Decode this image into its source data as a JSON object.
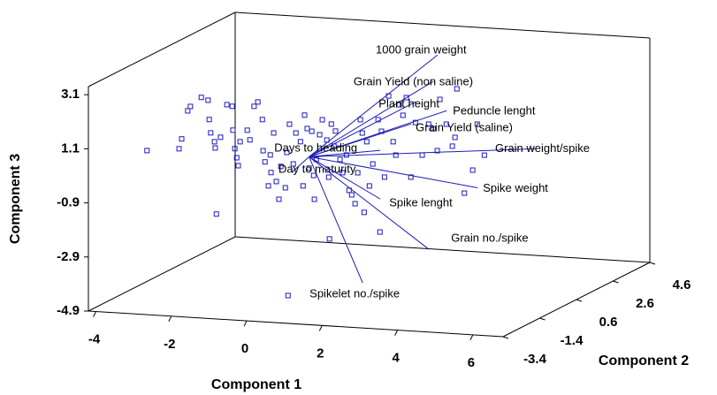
{
  "chart_data": {
    "type": "biplot3d",
    "x_label": "Component 1",
    "y_label": "Component 2",
    "z_label": "Component 3",
    "xlim": [
      -4.2,
      6.8
    ],
    "xticks": [
      -4,
      -2,
      0,
      2,
      4,
      6
    ],
    "ylim": [
      -3.4,
      4.6
    ],
    "yticks": [
      -3.4,
      -1.4,
      0.6,
      2.6,
      4.6
    ],
    "zlim": [
      -4.9,
      3.4
    ],
    "zticks": [
      -4.9,
      -2.9,
      -0.9,
      1.1,
      3.1
    ],
    "color": "#1c1cb8",
    "points": {
      "x": [
        -4.3,
        -3.45,
        -3.38,
        -3.22,
        -3.15,
        -2.86,
        -2.68,
        -2.65,
        -2.61,
        -2.51,
        -2.49,
        -2.35,
        -2.18,
        -2.04,
        -2.02,
        -1.97,
        -1.92,
        -1.88,
        -1.83,
        -1.64,
        -1.57,
        -1.46,
        -1.36,
        -1.24,
        -1.22,
        -1.17,
        -1.08,
        -1.03,
        -1.01,
        -0.94,
        -0.87,
        -0.8,
        -0.75,
        -0.63,
        -0.59,
        -0.52,
        -0.42,
        -0.35,
        -0.23,
        -0.16,
        -0.12,
        -0.05,
        0.07,
        0.14,
        0.19,
        0.28,
        0.35,
        0.47,
        0.52,
        0.59,
        0.54,
        0.66,
        0.7,
        0.82,
        0.89,
        0.99,
        1.06,
        1.13,
        1.22,
        1.29,
        1.36,
        1.41,
        1.46,
        1.53,
        1.6,
        1.69,
        1.83,
        1.88,
        1.92,
        2.0,
        2.11,
        2.23,
        2.3,
        2.39,
        2.49,
        2.58,
        2.7,
        2.82,
        3.0,
        3.17,
        3.29,
        3.4,
        3.47,
        3.64,
        3.8,
        3.87,
        3.92,
        4.12,
        4.34,
        4.46,
        4.65,
        -2.46,
        -0.56,
        0.0,
        0.12
      ],
      "z": [
        -0.14,
        0.0,
        0.37,
        1.42,
        1.59,
        1.95,
        1.86,
        1.15,
        0.66,
        0.34,
        0.11,
        0.52,
        1.74,
        1.69,
        0.81,
        0.13,
        -0.2,
        -0.49,
        0.4,
        0.84,
        0.49,
        1.74,
        1.91,
        1.27,
        0.12,
        -0.29,
        -1.17,
        -0.02,
        -0.67,
        0.8,
        -0.99,
        -1.64,
        -0.42,
        -1.2,
        0.11,
        1.16,
        -0.3,
        0.85,
        0.54,
        -1.09,
        1.53,
        1.04,
        0.95,
        -1.56,
        -0.08,
        0.84,
        1.4,
        0.66,
        -0.71,
        1.26,
        -2.99,
        0.45,
        1.01,
        -0.03,
        -0.51,
        0.15,
        -1.15,
        -1.31,
        -1.63,
        -0.48,
        1.49,
        1.0,
        -1.93,
        0.69,
        -0.94,
        -0.12,
        1.53,
        -2.62,
        1.11,
        -0.58,
        2.43,
        0.75,
        0.26,
        2.13,
        1.75,
        2.41,
        -0.52,
        1.51,
        0.32,
        1.48,
        1.32,
        0.52,
        2.42,
        1.52,
        0.72,
        1.05,
        2.85,
        -0.99,
        -0.12,
        1.59,
        0.46,
        -2.33,
        -5.18,
        -0.42,
        -0.68
      ]
    },
    "vectors": {
      "names": [
        "1000 grain weight",
        "Grain Yield (non saline)",
        "Plant height",
        "Peduncle lenght",
        "Grain Yield (saline)",
        "Grain weight/spike",
        "Days to heading",
        "Day to maturity",
        "Spike weight",
        "Spike lenght",
        "Grain no./spike",
        "Spikelet no./spike"
      ],
      "x": [
        3.41,
        3.29,
        2.83,
        3.65,
        2.71,
        5.99,
        1.89,
        -0.46,
        4.47,
        1.89,
        3.18,
        1.42
      ],
      "z": [
        4.06,
        3.07,
        2.28,
        2.02,
        1.45,
        0.81,
        0.4,
        -0.62,
        -0.76,
        -1.4,
        -3.15,
        -4.54
      ]
    }
  }
}
